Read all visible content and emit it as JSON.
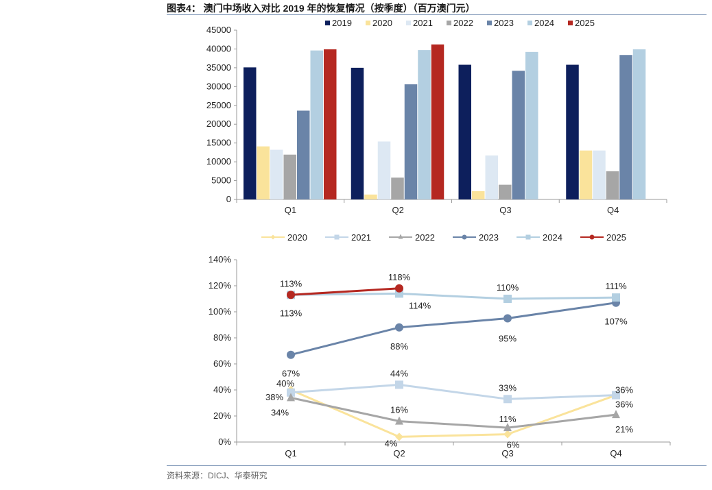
{
  "figure": {
    "title": "图表4： 澳门中场收入对比 2019 年的恢复情况（按季度）（百万澳门元）",
    "source": "资料来源：DICJ、华泰研究"
  },
  "colors": {
    "2019": "#0d1f5c",
    "2020": "#fae39b",
    "2021": "#dde8f3",
    "2022": "#a6a6a6",
    "2023": "#6a84a8",
    "2024": "#b3cfe1",
    "2025": "#b52821"
  },
  "line_colors": {
    "2020": "#fae39b",
    "2021": "#c3d6e8",
    "2022": "#a6a6a6",
    "2023": "#6a84a8",
    "2024": "#b3cfe1",
    "2025": "#b52821"
  },
  "chart_data": [
    {
      "type": "bar",
      "categories": [
        "Q1",
        "Q2",
        "Q3",
        "Q4"
      ],
      "ylim": [
        0,
        45000
      ],
      "yticks": [
        0,
        5000,
        10000,
        15000,
        20000,
        25000,
        30000,
        35000,
        40000,
        45000
      ],
      "legend_position": "top",
      "series": [
        {
          "name": "2019",
          "values": [
            35100,
            35000,
            35800,
            35800
          ]
        },
        {
          "name": "2020",
          "values": [
            14100,
            1300,
            2200,
            13000
          ]
        },
        {
          "name": "2021",
          "values": [
            13200,
            15400,
            11700,
            13000
          ]
        },
        {
          "name": "2022",
          "values": [
            11900,
            5800,
            3900,
            7500
          ]
        },
        {
          "name": "2023",
          "values": [
            23600,
            30600,
            34200,
            38400
          ]
        },
        {
          "name": "2024",
          "values": [
            39600,
            39700,
            39200,
            39900
          ]
        },
        {
          "name": "2025",
          "values": [
            39900,
            41200,
            null,
            null
          ]
        }
      ]
    },
    {
      "type": "line",
      "categories": [
        "Q1",
        "Q2",
        "Q3",
        "Q4"
      ],
      "ylim": [
        0,
        140
      ],
      "yticks": [
        "0%",
        "20%",
        "40%",
        "60%",
        "80%",
        "100%",
        "120%",
        "140%"
      ],
      "legend_position": "top",
      "series": [
        {
          "name": "2020",
          "marker": "diamond",
          "values": [
            40,
            4,
            6,
            36
          ],
          "labels": [
            "40%",
            "4%",
            "6%",
            "36%"
          ]
        },
        {
          "name": "2021",
          "marker": "square",
          "values": [
            38,
            44,
            33,
            36
          ],
          "labels": [
            "38%",
            "44%",
            "33%",
            "36%"
          ]
        },
        {
          "name": "2022",
          "marker": "triangle",
          "values": [
            34,
            16,
            11,
            21
          ],
          "labels": [
            "34%",
            "16%",
            "11%",
            "21%"
          ]
        },
        {
          "name": "2023",
          "marker": "circle",
          "values": [
            67,
            88,
            95,
            107
          ],
          "labels": [
            "67%",
            "88%",
            "95%",
            "107%"
          ]
        },
        {
          "name": "2024",
          "marker": "square",
          "values": [
            113,
            114,
            110,
            111
          ],
          "labels": [
            "113%",
            "114%",
            "110%",
            "111%"
          ]
        },
        {
          "name": "2025",
          "marker": "circle",
          "values": [
            113,
            118,
            null,
            null
          ],
          "labels": [
            "113%",
            "118%"
          ]
        }
      ]
    }
  ]
}
